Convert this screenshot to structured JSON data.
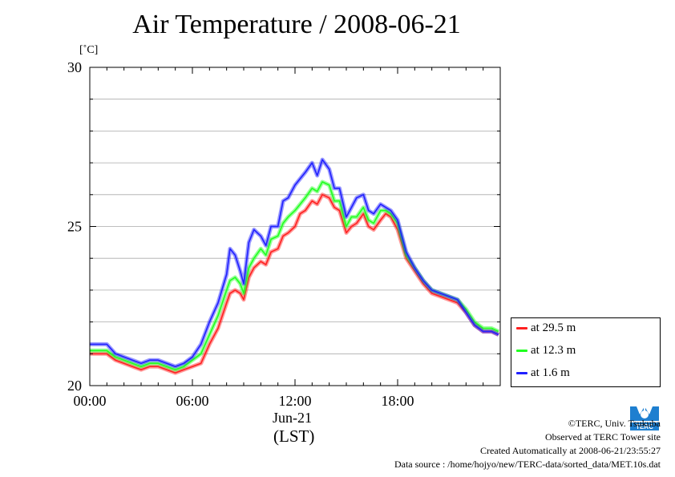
{
  "title": "Air Temperature / 2008-06-21",
  "unit_label": "[˚C]",
  "date_label": "Jun-21",
  "time_zone_label": "(LST)",
  "footer": {
    "credit": "©TERC, Univ. Tsukuba",
    "observed": "Observed at TERC Tower site",
    "created": "Created Automatically at 2008-06-21/23:55:27",
    "source": "Data source : /home/hojyo/new/TERC-data/sorted_data/MET.10s.dat"
  },
  "logo_text": "TERC",
  "colors": {
    "red": "#ff2020",
    "green": "#20ff20",
    "blue": "#2020ff",
    "grid": "#aaaaaa"
  },
  "chart_data": {
    "type": "line",
    "title": "Air Temperature / 2008-06-21",
    "ylabel": "[˚C]",
    "xlabel": "(LST)",
    "ylim": [
      20,
      30
    ],
    "xlim": [
      0,
      24
    ],
    "y_ticks": [
      "20",
      "25",
      "30"
    ],
    "x_ticks": [
      "00:00",
      "06:00",
      "12:00",
      "18:00"
    ],
    "grid": true,
    "legend_position": "right-bottom outside",
    "x": [
      0,
      1,
      1.5,
      2,
      2.5,
      3,
      3.5,
      4,
      4.5,
      5,
      5.5,
      6,
      6.5,
      7,
      7.5,
      8,
      8.2,
      8.5,
      8.8,
      9,
      9.3,
      9.6,
      10,
      10.3,
      10.6,
      11,
      11.3,
      11.6,
      12,
      12.3,
      12.6,
      13,
      13.3,
      13.6,
      14,
      14.3,
      14.6,
      15,
      15.3,
      15.6,
      16,
      16.3,
      16.6,
      17,
      17.3,
      17.6,
      18,
      18.5,
      19,
      19.5,
      20,
      20.5,
      21,
      21.5,
      22,
      22.5,
      23,
      23.5,
      23.9
    ],
    "series": [
      {
        "name": "at 29.5 m",
        "color": "#ff2020",
        "values": [
          21.0,
          21.0,
          20.8,
          20.7,
          20.6,
          20.5,
          20.6,
          20.6,
          20.5,
          20.4,
          20.5,
          20.6,
          20.7,
          21.3,
          21.8,
          22.6,
          22.9,
          23.0,
          22.9,
          22.7,
          23.4,
          23.7,
          23.9,
          23.8,
          24.2,
          24.3,
          24.7,
          24.8,
          25.0,
          25.4,
          25.5,
          25.8,
          25.7,
          26.0,
          25.9,
          25.6,
          25.5,
          24.8,
          25.0,
          25.1,
          25.4,
          25.0,
          24.9,
          25.2,
          25.4,
          25.3,
          24.9,
          24.0,
          23.6,
          23.2,
          22.9,
          22.8,
          22.7,
          22.6,
          22.3,
          21.9,
          21.7,
          21.7,
          21.6
        ]
      },
      {
        "name": "at 12.3 m",
        "color": "#20ff20",
        "values": [
          21.1,
          21.1,
          20.9,
          20.8,
          20.7,
          20.6,
          20.7,
          20.7,
          20.6,
          20.5,
          20.6,
          20.8,
          21.0,
          21.6,
          22.2,
          23.0,
          23.3,
          23.4,
          23.2,
          22.9,
          23.7,
          24.0,
          24.3,
          24.1,
          24.6,
          24.7,
          25.1,
          25.3,
          25.5,
          25.7,
          25.9,
          26.2,
          26.1,
          26.4,
          26.3,
          25.8,
          25.8,
          25.0,
          25.3,
          25.3,
          25.6,
          25.2,
          25.1,
          25.5,
          25.5,
          25.4,
          25.1,
          24.1,
          23.7,
          23.3,
          23.0,
          22.9,
          22.8,
          22.7,
          22.4,
          22.0,
          21.8,
          21.8,
          21.7
        ]
      },
      {
        "name": "at 1.6 m",
        "color": "#2020ff",
        "values": [
          21.3,
          21.3,
          21.0,
          20.9,
          20.8,
          20.7,
          20.8,
          20.8,
          20.7,
          20.6,
          20.7,
          20.9,
          21.3,
          22.0,
          22.6,
          23.5,
          24.3,
          24.1,
          23.6,
          23.2,
          24.5,
          24.9,
          24.7,
          24.4,
          25.0,
          25.0,
          25.8,
          25.9,
          26.3,
          26.5,
          26.7,
          27.0,
          26.6,
          27.1,
          26.8,
          26.2,
          26.2,
          25.3,
          25.6,
          25.9,
          26.0,
          25.5,
          25.4,
          25.7,
          25.6,
          25.5,
          25.2,
          24.2,
          23.7,
          23.3,
          23.0,
          22.9,
          22.8,
          22.7,
          22.3,
          21.9,
          21.7,
          21.7,
          21.6
        ]
      }
    ]
  }
}
